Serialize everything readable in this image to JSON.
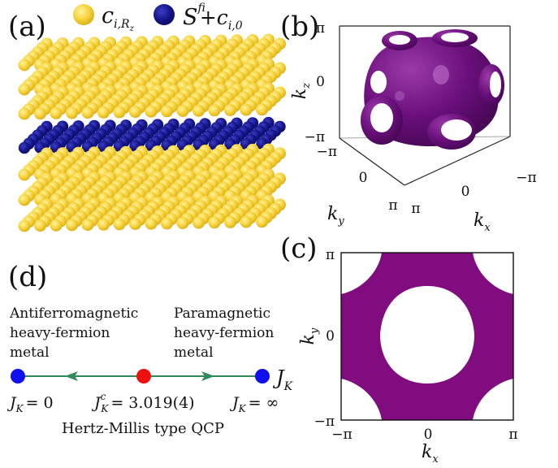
{
  "panels": {
    "a": {
      "label": "(a)",
      "legend": [
        {
          "base": "c",
          "sub": "i,R",
          "subsub": "z",
          "color": "#f7d23a"
        },
        {
          "base": "S",
          "sup": "f",
          "sub": "i",
          "rest": "+c",
          "rest_sub": "i,0",
          "color": "#0f107e"
        }
      ]
    },
    "b": {
      "label": "(b)",
      "z_axis": {
        "label": "k",
        "sub": "z",
        "ticks": [
          "π",
          "0",
          "−π"
        ]
      },
      "y_axis": {
        "label": "k",
        "sub": "y",
        "ticks": [
          "−π",
          "0",
          "π"
        ]
      },
      "x_axis": {
        "label": "k",
        "sub": "x",
        "ticks": [
          "π",
          "0",
          "−π"
        ]
      },
      "surface_color": "#5e0b6e"
    },
    "c": {
      "label": "(c)",
      "x_axis": {
        "label": "k",
        "sub": "x",
        "ticks": [
          "−π",
          "0",
          "π"
        ]
      },
      "y_axis": {
        "label": "k",
        "sub": "y",
        "ticks": [
          "−π",
          "0",
          "π"
        ]
      },
      "fill_color": "#800c80"
    },
    "d": {
      "label": "(d)",
      "left_phase": [
        "Antiferromagnetic",
        "heavy-fermion",
        "metal"
      ],
      "right_phase": [
        "Paramagnetic",
        "heavy-fermion",
        "metal"
      ],
      "axis_symbol": {
        "base": "J",
        "sub": "K"
      },
      "left_point": {
        "text": "= 0"
      },
      "critical_point": {
        "text": "= 3.019(4)",
        "sup": "c"
      },
      "right_point": {
        "text": "= ∞"
      },
      "caption": "Hertz-Millis type QCP",
      "colors": {
        "line": "#2e8b57",
        "endpoint": "#1010ee",
        "critical": "#ee1010"
      }
    }
  }
}
